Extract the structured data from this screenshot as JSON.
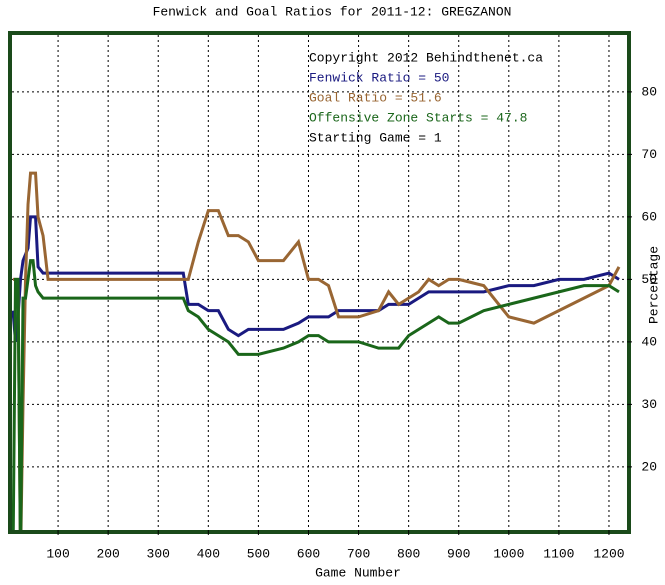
{
  "chart_data": {
    "type": "line",
    "title": "Fenwick and Goal Ratios for 2011-12: GREGZANON",
    "xlabel": "Game Number",
    "ylabel": "Percentage",
    "xlim": [
      8,
      1236
    ],
    "ylim": [
      9.9,
      89.1
    ],
    "xticks": [
      100,
      200,
      300,
      400,
      500,
      600,
      700,
      800,
      900,
      1000,
      1100,
      1200
    ],
    "yticks": [
      20,
      30,
      40,
      50,
      60,
      70,
      80
    ],
    "grid": true,
    "annotations": [
      {
        "text": "Copyright 2012 Behindthenet.ca",
        "color": "#000000",
        "line": 0
      },
      {
        "text": "Starting Game = 1",
        "color": "#000000",
        "line": 4
      }
    ],
    "x": [
      10,
      15,
      20,
      25,
      30,
      35,
      40,
      45,
      50,
      55,
      60,
      70,
      80,
      90,
      100,
      150,
      200,
      250,
      300,
      340,
      350,
      360,
      380,
      400,
      420,
      440,
      460,
      480,
      500,
      550,
      580,
      600,
      620,
      640,
      660,
      700,
      740,
      760,
      780,
      800,
      820,
      840,
      860,
      880,
      900,
      950,
      1000,
      1050,
      1100,
      1150,
      1200,
      1220
    ],
    "series": [
      {
        "name": "Fenwick Ratio = 50",
        "color": "#1a1a80",
        "values": [
          45,
          40,
          44,
          50,
          53,
          54,
          55,
          60,
          60,
          60,
          52,
          51,
          51,
          51,
          51,
          51,
          51,
          51,
          51,
          51,
          51,
          46,
          46,
          45,
          45,
          42,
          41,
          42,
          42,
          42,
          43,
          44,
          44,
          44,
          45,
          45,
          45,
          46,
          46,
          46,
          47,
          48,
          48,
          48,
          48,
          48,
          49,
          49,
          50,
          50,
          51,
          50
        ]
      },
      {
        "name": "Goal Ratio = 51.6",
        "color": "#996633",
        "values": [
          50,
          50,
          50,
          5,
          30,
          50,
          62,
          67,
          67,
          67,
          60,
          57,
          50,
          50,
          50,
          50,
          50,
          50,
          50,
          50,
          50,
          50,
          56,
          61,
          61,
          57,
          57,
          56,
          53,
          53,
          56,
          50,
          50,
          49,
          44,
          44,
          45,
          48,
          46,
          47,
          48,
          50,
          49,
          50,
          50,
          49,
          44,
          43,
          45,
          47,
          49,
          52
        ]
      },
      {
        "name": "Offensive Zone Starts = 47.8",
        "color": "#1a661a",
        "values": [
          5,
          50,
          50,
          5,
          47,
          47,
          50,
          53,
          53,
          49,
          48,
          47,
          47,
          47,
          47,
          47,
          47,
          47,
          47,
          47,
          47,
          45,
          44,
          42,
          41,
          40,
          38,
          38,
          38,
          39,
          40,
          41,
          41,
          40,
          40,
          40,
          39,
          39,
          39,
          41,
          42,
          43,
          44,
          43,
          43,
          45,
          46,
          47,
          48,
          49,
          49,
          48
        ]
      }
    ]
  }
}
